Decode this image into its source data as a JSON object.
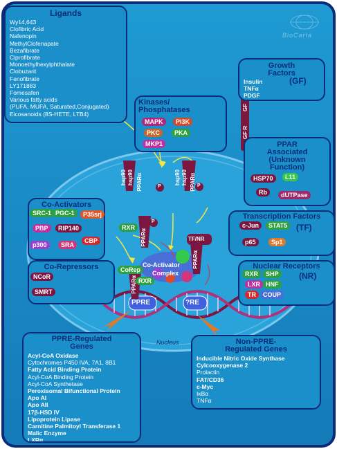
{
  "logo": "BioCarta",
  "ligands": {
    "title": "Ligands",
    "items": [
      "Wy14,643",
      "Clofibric Acid",
      "Nafenopin",
      "MethylClofenapate",
      "Bezafibrate",
      "Ciprofibrate",
      "Monoethylhexylphthalate",
      "Clobuzarit",
      "Fenofibrate",
      "LY171883",
      "Fomesafen",
      "Various fatty acids",
      "(PUFA, MUFA, Saturated,Conjugated)",
      "Eicosanoids (8S-HETE, LTB4)"
    ]
  },
  "growth_factors": {
    "title_line1": "Growth",
    "title_line2": "Factors",
    "abbr": "(GF)",
    "items": [
      "Insulin",
      "TNFα",
      "PDGF"
    ]
  },
  "kinases": {
    "title_line1": "Kinases/",
    "title_line2": "Phosphatases",
    "molecules": [
      "MAPK",
      "PI3K",
      "PKC",
      "PKA",
      "MKP1"
    ]
  },
  "ppar_associated": {
    "title_line1": "PPAR",
    "title_line2": "Associated",
    "title_line3": "(Unknown",
    "title_line4": "Function)",
    "molecules": [
      "HSP70",
      "L11",
      "Rb",
      "dUTPase"
    ]
  },
  "coactivators": {
    "title": "Co-Activators",
    "molecules": [
      "SRC-1",
      "PGC-1",
      "P35srj",
      "PBP",
      "RIP140",
      "p300",
      "SRA",
      "CBP"
    ]
  },
  "corepressors": {
    "title": "Co-Repressors",
    "molecules": [
      "NCoR",
      "SMRT"
    ]
  },
  "transcription_factors": {
    "title": "Transcription Factors",
    "abbr": "(TF)",
    "molecules": [
      "c-Jun",
      "STAT5",
      "p65",
      "Sp1"
    ]
  },
  "nuclear_receptors": {
    "title": "Nuclear Receptors",
    "abbr": "(NR)",
    "molecules": [
      "RXR",
      "SHP",
      "LXR",
      "HNF",
      "TR",
      "COUP"
    ]
  },
  "center": {
    "gf": "GF",
    "gfr": "GF R",
    "hsp90": "hsp90",
    "ppara": "PPARα",
    "p": "P",
    "rxr": "RXR",
    "tfnr": "TF/NR",
    "corep": "CoRep",
    "coactivator_line1": "Co-Activator",
    "coactivator_line2": "Complex",
    "ppre": "PPRE",
    "re": "?RE",
    "nucleus": "Nucleus"
  },
  "ppre_genes": {
    "title_line1": "PPRE-Regulated",
    "title_line2": "Genes",
    "items": [
      {
        "t": "Acyl-CoA Oxidase",
        "b": true
      },
      {
        "t": "Cytochromes P450 IVA, 7A1, 8B1",
        "b": false
      },
      {
        "t": "Fatty Acid Binding Protein",
        "b": true
      },
      {
        "t": "Acyl-CoA Binding Protein",
        "b": false
      },
      {
        "t": "Acyl-CoA Synthetase",
        "b": false
      },
      {
        "t": "Peroxisomal Bifunctional Protein",
        "b": true
      },
      {
        "t": "Apo AI",
        "b": true
      },
      {
        "t": "Apo AII",
        "b": true
      },
      {
        "t": "17β-HSD IV",
        "b": true
      },
      {
        "t": "Lipoprotein Lipase",
        "b": true
      },
      {
        "t": "Carnitine Palmitoyl Transferase 1",
        "b": true
      },
      {
        "t": "Malic Enzyme",
        "b": true
      },
      {
        "t": "LXRα",
        "b": true
      }
    ]
  },
  "non_ppre_genes": {
    "title_line1": "Non-PPRE-",
    "title_line2": "Regulated Genes",
    "items": [
      {
        "t": "Inducible Nitric Oxide Synthase",
        "b": true
      },
      {
        "t": "Cylcooxygenase 2",
        "b": true
      },
      {
        "t": "Prolactin",
        "b": false
      },
      {
        "t": "FAT/CD36",
        "b": true
      },
      {
        "t": "c-Myc",
        "b": true
      },
      {
        "t": "IκBα",
        "b": false
      },
      {
        "t": "TNFα",
        "b": false
      }
    ]
  },
  "colors": {
    "bg": "#1a8fc9",
    "border": "#0a2d7a",
    "cell_fill": "#1e99d2",
    "nucleus_fill": "#2fa6dc",
    "maroon": "#7a1640",
    "arrow_yellow": "#f5e642",
    "arrow_orange": "#e07a2a"
  }
}
